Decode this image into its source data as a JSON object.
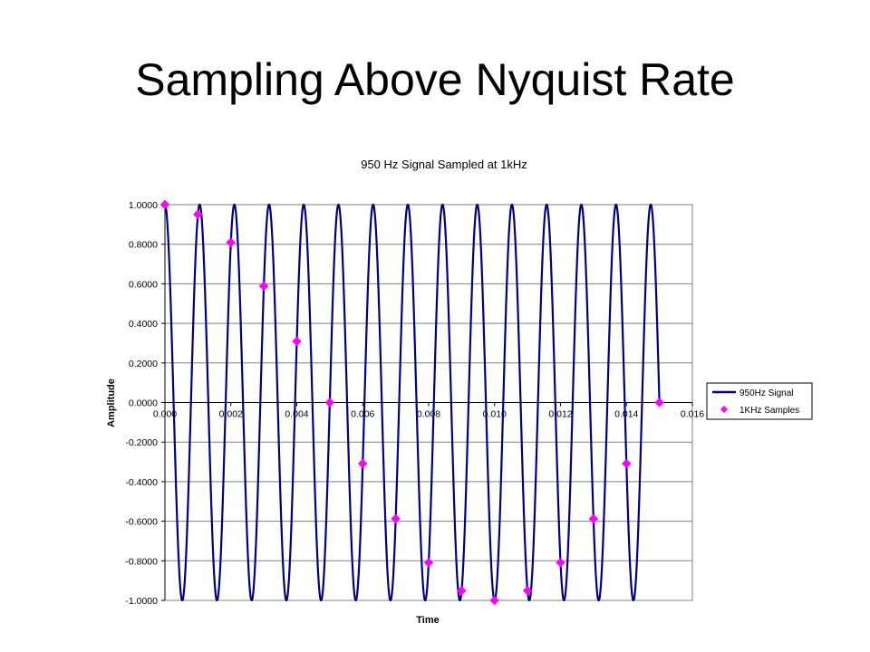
{
  "slide": {
    "title": "Sampling Above Nyquist Rate"
  },
  "chart_data": {
    "type": "line",
    "title": "950 Hz Signal Sampled at 1kHz",
    "xlabel": "Time",
    "ylabel": "Amplitude",
    "xlim": [
      0,
      0.016
    ],
    "ylim": [
      -1.0,
      1.0
    ],
    "x_ticks": [
      "0.000",
      "0.002",
      "0.004",
      "0.006",
      "0.008",
      "0.010",
      "0.012",
      "0.014",
      "0.016"
    ],
    "y_ticks": [
      "1.0000",
      "0.8000",
      "0.6000",
      "0.4000",
      "0.2000",
      "0.0000",
      "-0.2000",
      "-0.4000",
      "-0.6000",
      "-0.8000",
      "-1.0000"
    ],
    "grid": "horizontal",
    "legend_position": "right",
    "series": [
      {
        "name": "950Hz Signal",
        "kind": "line",
        "color": "#000080",
        "frequency_hz": 950,
        "x_range": [
          0,
          0.015
        ]
      },
      {
        "name": "1KHz Samples",
        "kind": "scatter",
        "marker": "diamond",
        "color": "#FF00FF",
        "x": [
          0,
          0.001,
          0.002,
          0.003,
          0.004,
          0.005,
          0.006,
          0.007,
          0.008,
          0.009,
          0.01,
          0.011,
          0.012,
          0.013,
          0.014,
          0.015
        ],
        "y": [
          1.0,
          0.951,
          0.809,
          0.588,
          0.309,
          0.0,
          -0.309,
          -0.588,
          -0.809,
          -0.951,
          -1.0,
          -0.951,
          -0.809,
          -0.588,
          -0.309,
          0.0
        ]
      }
    ]
  }
}
